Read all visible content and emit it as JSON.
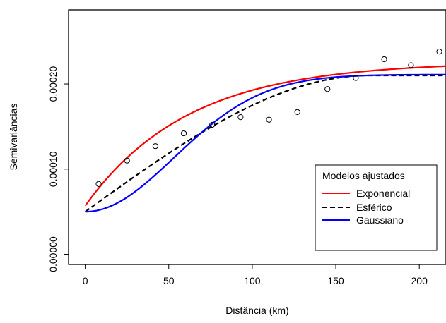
{
  "chart_data": {
    "type": "scatter",
    "title": "",
    "xlabel": "Distância (km)",
    "ylabel": "Semivariâncias",
    "xlim": [
      -10,
      216
    ],
    "ylim": [
      -1.2e-05,
      0.000287
    ],
    "x_ticks": [
      0,
      50,
      100,
      150,
      200
    ],
    "x_tick_labels": [
      "0",
      "50",
      "100",
      "150",
      "200"
    ],
    "y_ticks": [
      0,
      0.0001,
      0.0002
    ],
    "y_tick_labels": [
      "0.00000",
      "0.00010",
      "0.00020"
    ],
    "points": {
      "x": [
        8,
        25,
        42,
        59,
        76,
        93,
        110,
        127,
        145,
        162,
        179,
        195,
        212
      ],
      "y": [
        8.25e-05,
        0.00011,
        0.000127,
        0.000142,
        0.000152,
        0.000161,
        0.000158,
        0.000167,
        0.000194,
        0.000207,
        0.000229,
        0.000222,
        0.000238
      ]
    },
    "series": [
      {
        "name": "Exponencial",
        "color": "#ff0000",
        "dash": "solid",
        "model": "exponential",
        "nugget": 5.7e-05,
        "sill": 0.000226,
        "range": 185,
        "x_max": 216
      },
      {
        "name": "Esférico",
        "color": "#000000",
        "dash": "dashed",
        "model": "spherical",
        "nugget": 5e-05,
        "sill": 0.00021,
        "range": 170,
        "x_max": 216
      },
      {
        "name": "Gaussiano",
        "color": "#0000ff",
        "dash": "solid",
        "model": "gaussian",
        "nugget": 5e-05,
        "sill": 0.000211,
        "range": 130,
        "x_max": 216
      }
    ],
    "legend": {
      "title": "Modelos ajustados",
      "position": "bottom-right"
    },
    "grid": false
  }
}
